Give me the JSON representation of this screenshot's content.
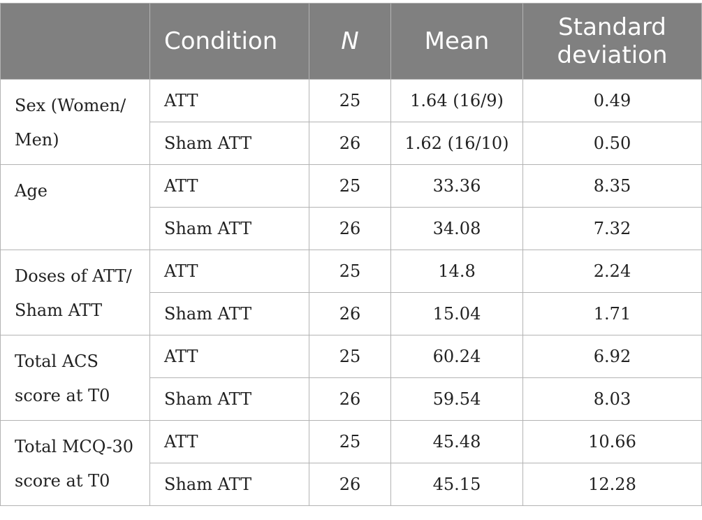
{
  "table": {
    "headers": {
      "variable": "",
      "condition": "Condition",
      "n": "N",
      "mean": "Mean",
      "sd": "Standard deviation"
    },
    "groups": [
      {
        "label": "Sex (Women/ Men)",
        "rows": [
          {
            "condition": "ATT",
            "n": "25",
            "mean": "1.64 (16/9)",
            "sd": "0.49"
          },
          {
            "condition": "Sham ATT",
            "n": "26",
            "mean": "1.62 (16/10)",
            "sd": "0.50"
          }
        ]
      },
      {
        "label": "Age",
        "rows": [
          {
            "condition": "ATT",
            "n": "25",
            "mean": "33.36",
            "sd": "8.35"
          },
          {
            "condition": "Sham ATT",
            "n": "26",
            "mean": "34.08",
            "sd": "7.32"
          }
        ]
      },
      {
        "label": "Doses of ATT/ Sham ATT",
        "rows": [
          {
            "condition": "ATT",
            "n": "25",
            "mean": "14.8",
            "sd": "2.24"
          },
          {
            "condition": "Sham ATT",
            "n": "26",
            "mean": "15.04",
            "sd": "1.71"
          }
        ]
      },
      {
        "label": "Total ACS score at T0",
        "rows": [
          {
            "condition": "ATT",
            "n": "25",
            "mean": "60.24",
            "sd": "6.92"
          },
          {
            "condition": "Sham ATT",
            "n": "26",
            "mean": "59.54",
            "sd": "8.03"
          }
        ]
      },
      {
        "label": "Total MCQ-30 score at T0",
        "rows": [
          {
            "condition": "ATT",
            "n": "25",
            "mean": "45.48",
            "sd": "10.66"
          },
          {
            "condition": "Sham ATT",
            "n": "26",
            "mean": "45.15",
            "sd": "12.28"
          }
        ]
      }
    ]
  }
}
